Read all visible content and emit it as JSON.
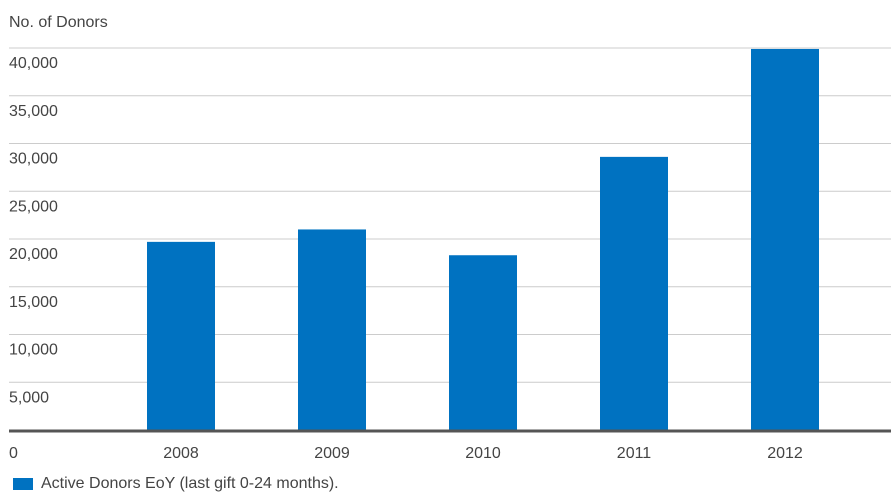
{
  "chart_data": {
    "type": "bar",
    "title": "",
    "ylabel": "No. of Donors",
    "xlabel": "",
    "categories": [
      "2008",
      "2009",
      "2010",
      "2011",
      "2012"
    ],
    "series": [
      {
        "name": "Active Donors EoY (last gift 0-24 months).",
        "values": [
          19700,
          21000,
          18300,
          28600,
          39900
        ]
      }
    ],
    "ylim": [
      0,
      40000
    ],
    "yticks": [
      0,
      5000,
      10000,
      15000,
      20000,
      25000,
      30000,
      35000,
      40000
    ],
    "ytick_labels": [
      "0",
      "5,000",
      "10,000",
      "15,000",
      "20,000",
      "25,000",
      "30,000",
      "35,000",
      "40,000"
    ],
    "grid": true,
    "legend_position": "bottom-left",
    "colors": {
      "bar": "#0072c1",
      "grid": "#cccccc",
      "axis": "#555555"
    }
  }
}
